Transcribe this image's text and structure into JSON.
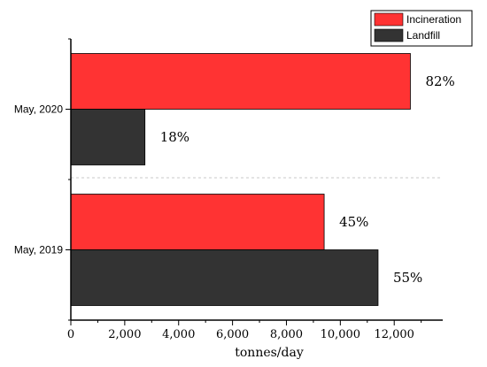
{
  "chart_data": {
    "type": "bar",
    "orientation": "horizontal",
    "categories": [
      "May, 2020",
      "May, 2019"
    ],
    "series": [
      {
        "name": "Incineration",
        "color": "#ff3333",
        "values": [
          12600,
          9400
        ],
        "labels": [
          "82%",
          "45%"
        ]
      },
      {
        "name": "Landfill",
        "color": "#333333",
        "values": [
          2750,
          11400
        ],
        "labels": [
          "18%",
          "55%"
        ]
      }
    ],
    "xlabel": "tonnes/day",
    "ylabel": "",
    "xlim": [
      0,
      13800
    ],
    "xticks": [
      0,
      2000,
      4000,
      6000,
      8000,
      10000,
      12000
    ],
    "xtick_labels": [
      "0",
      "2,000",
      "4,000",
      "6,000",
      "8,000",
      "10,000",
      "12,000"
    ],
    "legend_position": "top-right",
    "grid": false
  }
}
